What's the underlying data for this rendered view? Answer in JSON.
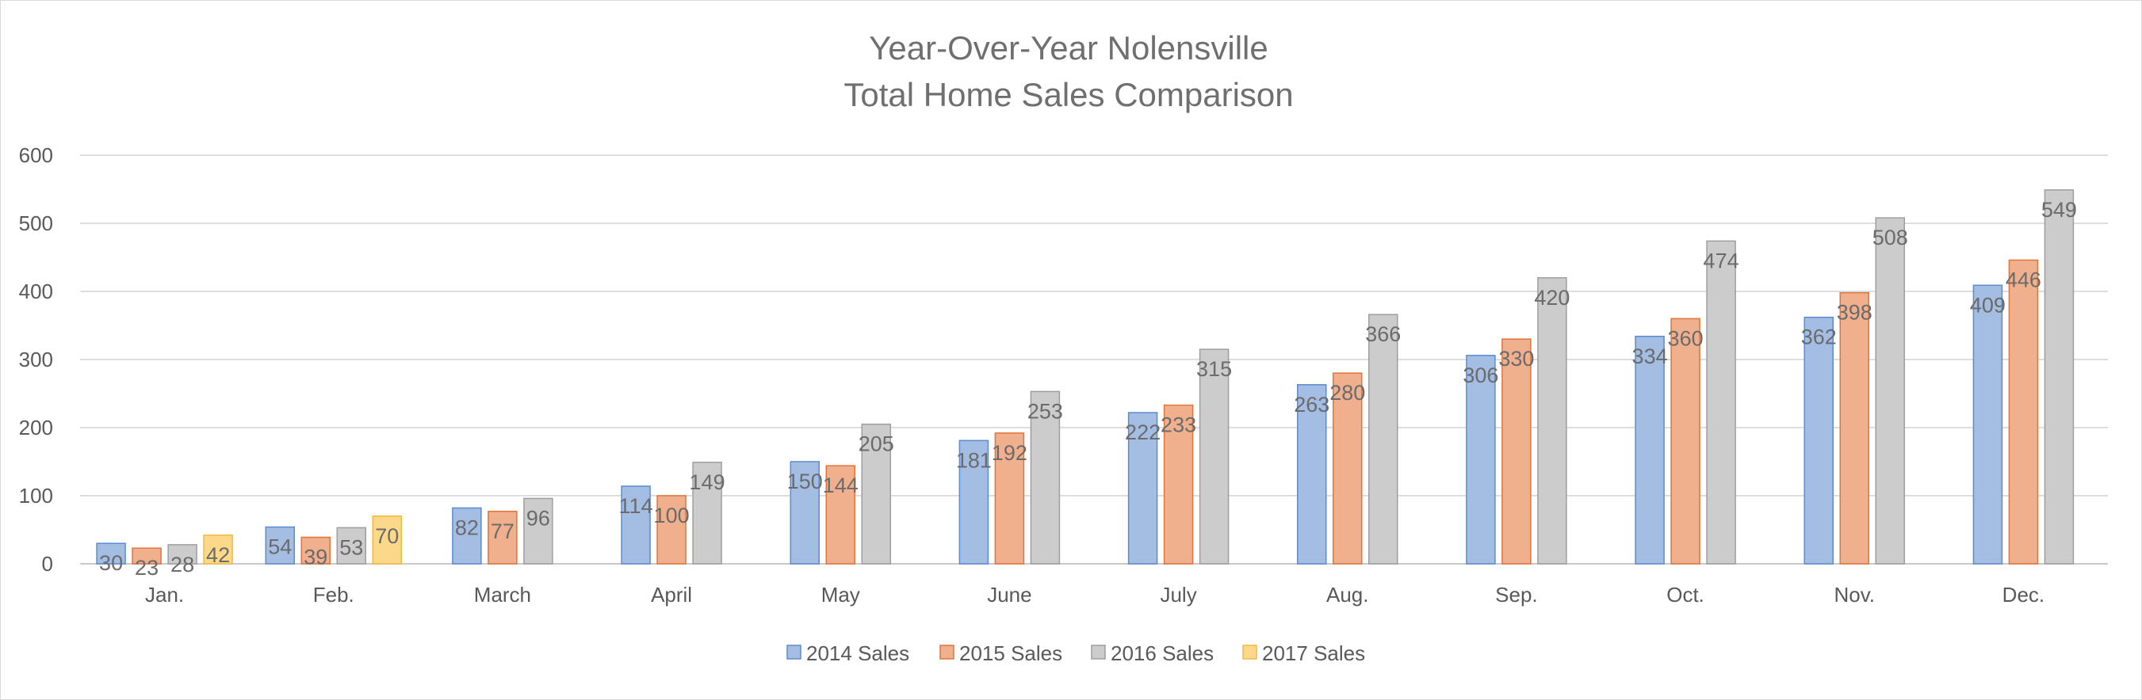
{
  "chart_data": {
    "type": "bar",
    "title_lines": [
      "Year-Over-Year Nolensville",
      "Total Home Sales Comparison"
    ],
    "categories": [
      "Jan.",
      "Feb.",
      "March",
      "April",
      "May",
      "June",
      "July",
      "Aug.",
      "Sep.",
      "Oct.",
      "Nov.",
      "Dec."
    ],
    "series": [
      {
        "name": "2014 Sales",
        "color": "#a4bde3",
        "stroke": "#5b8bd0",
        "values": [
          30,
          54,
          82,
          114,
          150,
          181,
          222,
          263,
          306,
          334,
          362,
          409
        ],
        "labels": [
          "30",
          "54",
          "82",
          "114",
          "150",
          "181",
          "222",
          "263",
          "306",
          "334",
          "362",
          "409"
        ]
      },
      {
        "name": "2015 Sales",
        "color": "#f0b08e",
        "stroke": "#e0743b",
        "values": [
          23,
          39,
          77,
          100,
          144,
          192,
          233,
          280,
          330,
          360,
          398,
          446
        ],
        "labels": [
          "23",
          "39",
          "77",
          "100",
          "144",
          "192",
          "233",
          "280",
          "330",
          "360",
          "398",
          "446"
        ]
      },
      {
        "name": "2016 Sales",
        "color": "#cccccc",
        "stroke": "#9e9e9e",
        "values": [
          28,
          53,
          96,
          149,
          205,
          253,
          315,
          366,
          420,
          474,
          508,
          549
        ],
        "labels": [
          "28",
          "53",
          "96",
          "149",
          "205",
          "253",
          "315",
          "366",
          "420",
          "474",
          "508",
          "549"
        ]
      },
      {
        "name": "2017 Sales",
        "color": "#fbd88a",
        "stroke": "#f5b83d",
        "values": [
          42,
          70,
          null,
          null,
          null,
          null,
          null,
          null,
          null,
          null,
          null,
          null
        ],
        "labels": [
          "42",
          "70",
          null,
          null,
          null,
          null,
          null,
          null,
          null,
          null,
          null,
          null
        ]
      }
    ],
    "y_ticks": [
      "0",
      "100",
      "200",
      "300",
      "400",
      "500",
      "600"
    ],
    "ylim": [
      0,
      600
    ],
    "grid": true,
    "legend_position": "bottom"
  }
}
